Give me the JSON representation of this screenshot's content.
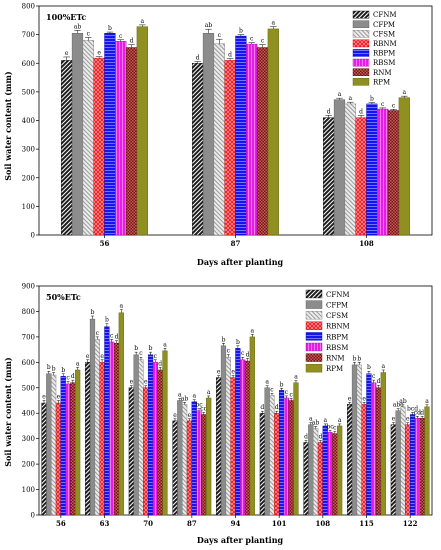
{
  "chart_data": [
    {
      "type": "bar",
      "panel_label": "100%ETc",
      "xlabel": "Days after planting",
      "ylabel": "Soil water content (mm)",
      "ylim": [
        0,
        800
      ],
      "yticks": [
        0,
        100,
        200,
        300,
        400,
        500,
        600,
        700,
        800
      ],
      "categories": [
        "56",
        "87",
        "108"
      ],
      "legend_position": "top-right",
      "series": [
        {
          "name": "CFNM",
          "values": [
            610,
            600,
            410
          ],
          "errors": [
            12,
            6,
            8
          ],
          "letters": [
            "e",
            "d",
            "d"
          ]
        },
        {
          "name": "CFPM",
          "values": [
            705,
            705,
            473
          ],
          "errors": [
            10,
            14,
            5
          ],
          "letters": [
            "ab",
            "ab",
            "a"
          ]
        },
        {
          "name": "CFSM",
          "values": [
            680,
            668,
            458
          ],
          "errors": [
            10,
            16,
            6
          ],
          "letters": [
            "c",
            "c",
            "a"
          ]
        },
        {
          "name": "RBNM",
          "values": [
            618,
            610,
            410
          ],
          "errors": [
            5,
            6,
            8
          ],
          "letters": [
            "e",
            "d",
            "d"
          ]
        },
        {
          "name": "RBPM",
          "values": [
            705,
            695,
            458
          ],
          "errors": [
            4,
            5,
            5
          ],
          "letters": [
            "b",
            "b",
            "b"
          ]
        },
        {
          "name": "RBSM",
          "values": [
            677,
            667,
            440
          ],
          "errors": [
            5,
            5,
            4
          ],
          "letters": [
            "c",
            "c",
            "c"
          ]
        },
        {
          "name": "RNM",
          "values": [
            655,
            655,
            435
          ],
          "errors": [
            10,
            10,
            4
          ],
          "letters": [
            "d",
            "c",
            "c"
          ]
        },
        {
          "name": "RPM",
          "values": [
            728,
            720,
            480
          ],
          "errors": [
            6,
            8,
            5
          ],
          "letters": [
            "a",
            "a",
            "a"
          ]
        }
      ]
    },
    {
      "type": "bar",
      "panel_label": "50%ETc",
      "xlabel": "Days after planting",
      "ylabel": "Soil water content (mm)",
      "ylim": [
        0,
        900
      ],
      "yticks": [
        0,
        100,
        200,
        300,
        400,
        500,
        600,
        700,
        800,
        900
      ],
      "categories": [
        "56",
        "63",
        "70",
        "87",
        "94",
        "101",
        "108",
        "115",
        "122"
      ],
      "legend_position": "top-right",
      "series": [
        {
          "name": "CFNM",
          "values": [
            440,
            600,
            500,
            370,
            540,
            400,
            285,
            435,
            355
          ],
          "errors": [
            10,
            10,
            8,
            8,
            8,
            8,
            8,
            8,
            8
          ],
          "letters": [
            "e",
            "e",
            "e",
            "e",
            "e",
            "d",
            "d",
            "e",
            "e"
          ]
        },
        {
          "name": "CFPM",
          "values": [
            555,
            770,
            630,
            450,
            665,
            500,
            355,
            590,
            410
          ],
          "errors": [
            10,
            12,
            10,
            8,
            10,
            8,
            8,
            10,
            8
          ],
          "letters": [
            "b",
            "b",
            "b",
            "a",
            "b",
            "a",
            "a",
            "b",
            "abc"
          ]
        },
        {
          "name": "CFSM",
          "values": [
            550,
            690,
            610,
            435,
            620,
            470,
            340,
            590,
            425
          ],
          "errors": [
            10,
            10,
            10,
            8,
            10,
            8,
            8,
            10,
            8
          ],
          "letters": [
            "b",
            "c",
            "c",
            "ab",
            "c",
            "c",
            "ab",
            "b",
            "ab"
          ]
        },
        {
          "name": "RBNM",
          "values": [
            440,
            600,
            500,
            370,
            540,
            400,
            285,
            435,
            355
          ],
          "errors": [
            10,
            10,
            8,
            8,
            8,
            8,
            8,
            8,
            8
          ],
          "letters": [
            "e",
            "e",
            "e",
            "e",
            "e",
            "d",
            "d",
            "e",
            "e"
          ]
        },
        {
          "name": "RBPM",
          "values": [
            545,
            740,
            630,
            445,
            655,
            490,
            350,
            555,
            395
          ],
          "errors": [
            10,
            12,
            10,
            8,
            10,
            8,
            8,
            10,
            8
          ],
          "letters": [
            "b",
            "b",
            "b",
            "a",
            "b",
            "b",
            "a",
            "b",
            "bcd"
          ]
        },
        {
          "name": "RBSM",
          "values": [
            515,
            680,
            600,
            410,
            610,
            460,
            325,
            520,
            380
          ],
          "errors": [
            10,
            10,
            10,
            8,
            10,
            8,
            8,
            10,
            8
          ],
          "letters": [
            "c",
            "c",
            "c",
            "bc",
            "c",
            "c",
            "bc",
            "c",
            "cd"
          ]
        },
        {
          "name": "RNM",
          "values": [
            520,
            675,
            570,
            395,
            605,
            450,
            320,
            500,
            380
          ],
          "errors": [
            10,
            10,
            10,
            8,
            10,
            8,
            8,
            10,
            8
          ],
          "letters": [
            "d",
            "d",
            "d",
            "cd",
            "d",
            "c",
            "c",
            "d",
            "d"
          ]
        },
        {
          "name": "RPM",
          "values": [
            570,
            795,
            645,
            460,
            700,
            520,
            350,
            560,
            425
          ],
          "errors": [
            10,
            12,
            10,
            8,
            10,
            8,
            8,
            10,
            8
          ],
          "letters": [
            "a",
            "a",
            "a",
            "a",
            "a",
            "a",
            "a",
            "a",
            "a"
          ]
        }
      ]
    }
  ],
  "styles": [
    {
      "series": "CFNM",
      "fill": "#2a2a2a",
      "pattern": "hatch-dark",
      "stroke": "#000000"
    },
    {
      "series": "CFPM",
      "fill": "#8c8c8c",
      "pattern": "solid",
      "stroke": "#555555"
    },
    {
      "series": "CFSM",
      "fill": "#dcdcdc",
      "pattern": "hatch-light",
      "stroke": "#777777"
    },
    {
      "series": "RBNM",
      "fill": "#e8141c",
      "pattern": "crosshatch-red",
      "stroke": "#b00000"
    },
    {
      "series": "RBPM",
      "fill": "#1616ee",
      "pattern": "hlines-blue",
      "stroke": "#0000aa"
    },
    {
      "series": "RBSM",
      "fill": "#e020e0",
      "pattern": "vlines-magenta",
      "stroke": "#a000a0"
    },
    {
      "series": "RNM",
      "fill": "#8a1a1a",
      "pattern": "checker-maroon",
      "stroke": "#5a0000"
    },
    {
      "series": "RPM",
      "fill": "#8f8f22",
      "pattern": "solid",
      "stroke": "#5c5c10"
    }
  ]
}
